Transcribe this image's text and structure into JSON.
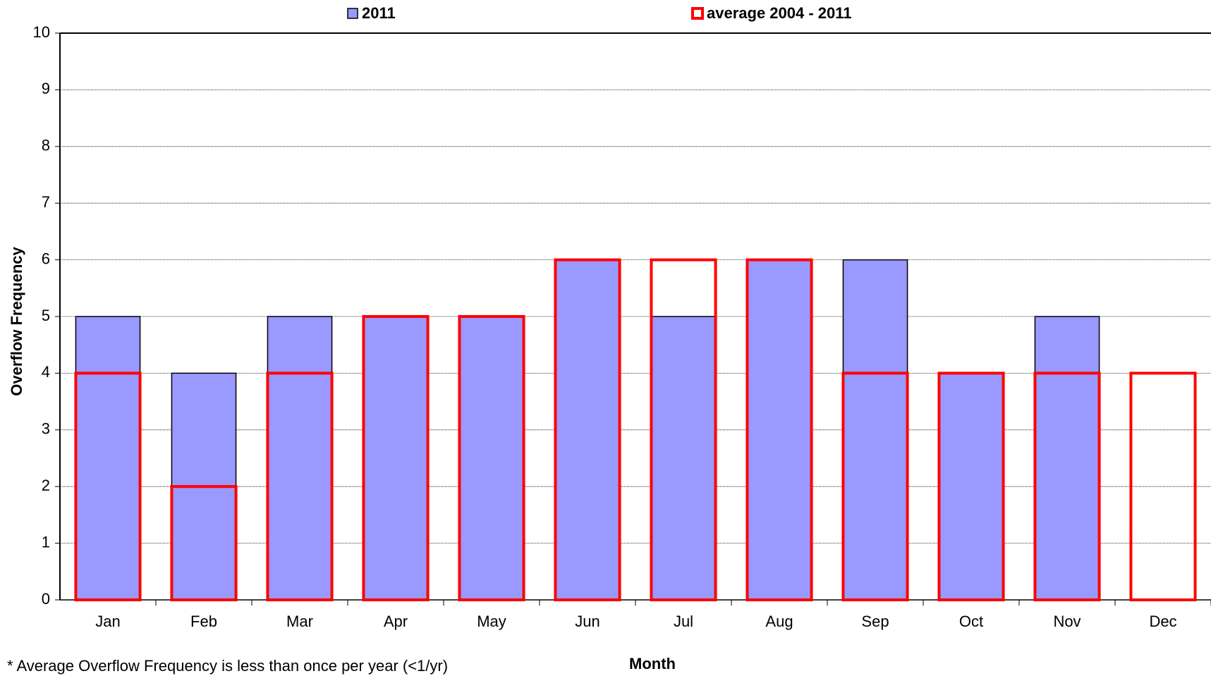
{
  "chart_data": {
    "type": "bar",
    "x_label": "Month",
    "y_label": "Overflow Frequency",
    "note": "* Average Overflow Frequency is less than once per year (<1/yr)",
    "categories": [
      "Jan",
      "Feb",
      "Mar",
      "Apr",
      "May",
      "Jun",
      "Jul",
      "Aug",
      "Sep",
      "Oct",
      "Nov",
      "Dec"
    ],
    "series": [
      {
        "name": "2011",
        "color": "#9999ff",
        "values": [
          5,
          4,
          5,
          5,
          5,
          6,
          5,
          6,
          6,
          4,
          5,
          0
        ]
      },
      {
        "name": "average 2004 - 2011",
        "color": "#ff0000",
        "values": [
          4,
          2,
          4,
          5,
          5,
          6,
          6,
          6,
          4,
          4,
          4,
          4
        ]
      }
    ],
    "ylim": [
      0,
      10
    ],
    "yticks": [
      0,
      1,
      2,
      3,
      4,
      5,
      6,
      7,
      8,
      9,
      10
    ],
    "grid": true
  }
}
